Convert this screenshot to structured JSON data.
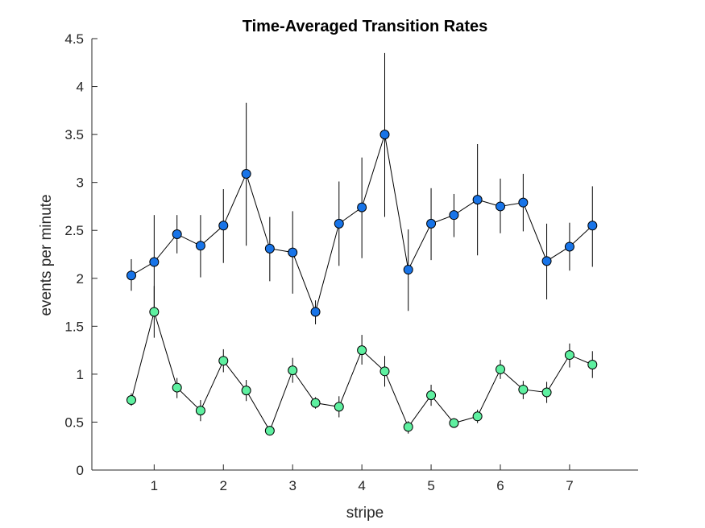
{
  "chart_data": {
    "type": "scatter",
    "title": "Time-Averaged Transition Rates",
    "xlabel": "stripe",
    "ylabel": "events per minute",
    "xlim": [
      0.1,
      7.99
    ],
    "ylim": [
      0,
      4.5
    ],
    "xticks": [
      1,
      2,
      3,
      4,
      5,
      6,
      7
    ],
    "yticks": [
      0,
      0.5,
      1,
      1.5,
      2,
      2.5,
      3,
      3.5,
      4,
      4.5
    ],
    "ytick_labels": [
      "0",
      "0.5",
      "1",
      "1.5",
      "2",
      "2.5",
      "3",
      "3.5",
      "4",
      "4.5"
    ],
    "grid": false,
    "x": [
      0.67,
      1.0,
      1.33,
      1.67,
      2.0,
      2.33,
      2.67,
      3.0,
      3.33,
      3.67,
      4.0,
      4.33,
      4.67,
      5.0,
      5.33,
      5.67,
      6.0,
      6.33,
      6.67,
      7.0,
      7.33
    ],
    "series": [
      {
        "color": "#1874e8",
        "y": [
          2.03,
          2.17,
          2.46,
          2.34,
          2.55,
          3.09,
          2.31,
          2.27,
          1.65,
          2.57,
          2.74,
          3.5,
          2.09,
          2.57,
          2.66,
          2.82,
          2.75,
          2.79,
          2.18,
          2.33,
          2.55
        ],
        "low": [
          1.87,
          1.67,
          2.26,
          2.01,
          2.16,
          2.34,
          1.97,
          1.84,
          1.52,
          2.13,
          2.21,
          2.64,
          1.66,
          2.19,
          2.43,
          2.24,
          2.47,
          2.49,
          1.78,
          2.08,
          2.12
        ],
        "high": [
          2.2,
          2.66,
          2.66,
          2.66,
          2.93,
          3.83,
          2.64,
          2.7,
          1.77,
          3.01,
          3.26,
          4.35,
          2.51,
          2.94,
          2.88,
          3.4,
          3.04,
          3.09,
          2.57,
          2.58,
          2.96
        ]
      },
      {
        "color": "#5ef0a0",
        "y": [
          0.73,
          1.65,
          0.86,
          0.62,
          1.14,
          0.83,
          0.41,
          1.04,
          0.7,
          0.66,
          1.25,
          1.03,
          0.45,
          0.78,
          0.49,
          0.56,
          1.05,
          0.84,
          0.81,
          1.2,
          1.1
        ],
        "low": [
          0.67,
          1.38,
          0.75,
          0.51,
          1.02,
          0.72,
          0.36,
          0.91,
          0.64,
          0.55,
          1.1,
          0.87,
          0.38,
          0.67,
          0.44,
          0.49,
          0.95,
          0.74,
          0.7,
          1.07,
          0.96
        ],
        "high": [
          0.8,
          1.92,
          0.96,
          0.73,
          1.26,
          0.94,
          0.46,
          1.17,
          0.76,
          0.77,
          1.41,
          1.19,
          0.51,
          0.89,
          0.54,
          0.63,
          1.15,
          0.93,
          0.92,
          1.32,
          1.24
        ]
      }
    ]
  }
}
